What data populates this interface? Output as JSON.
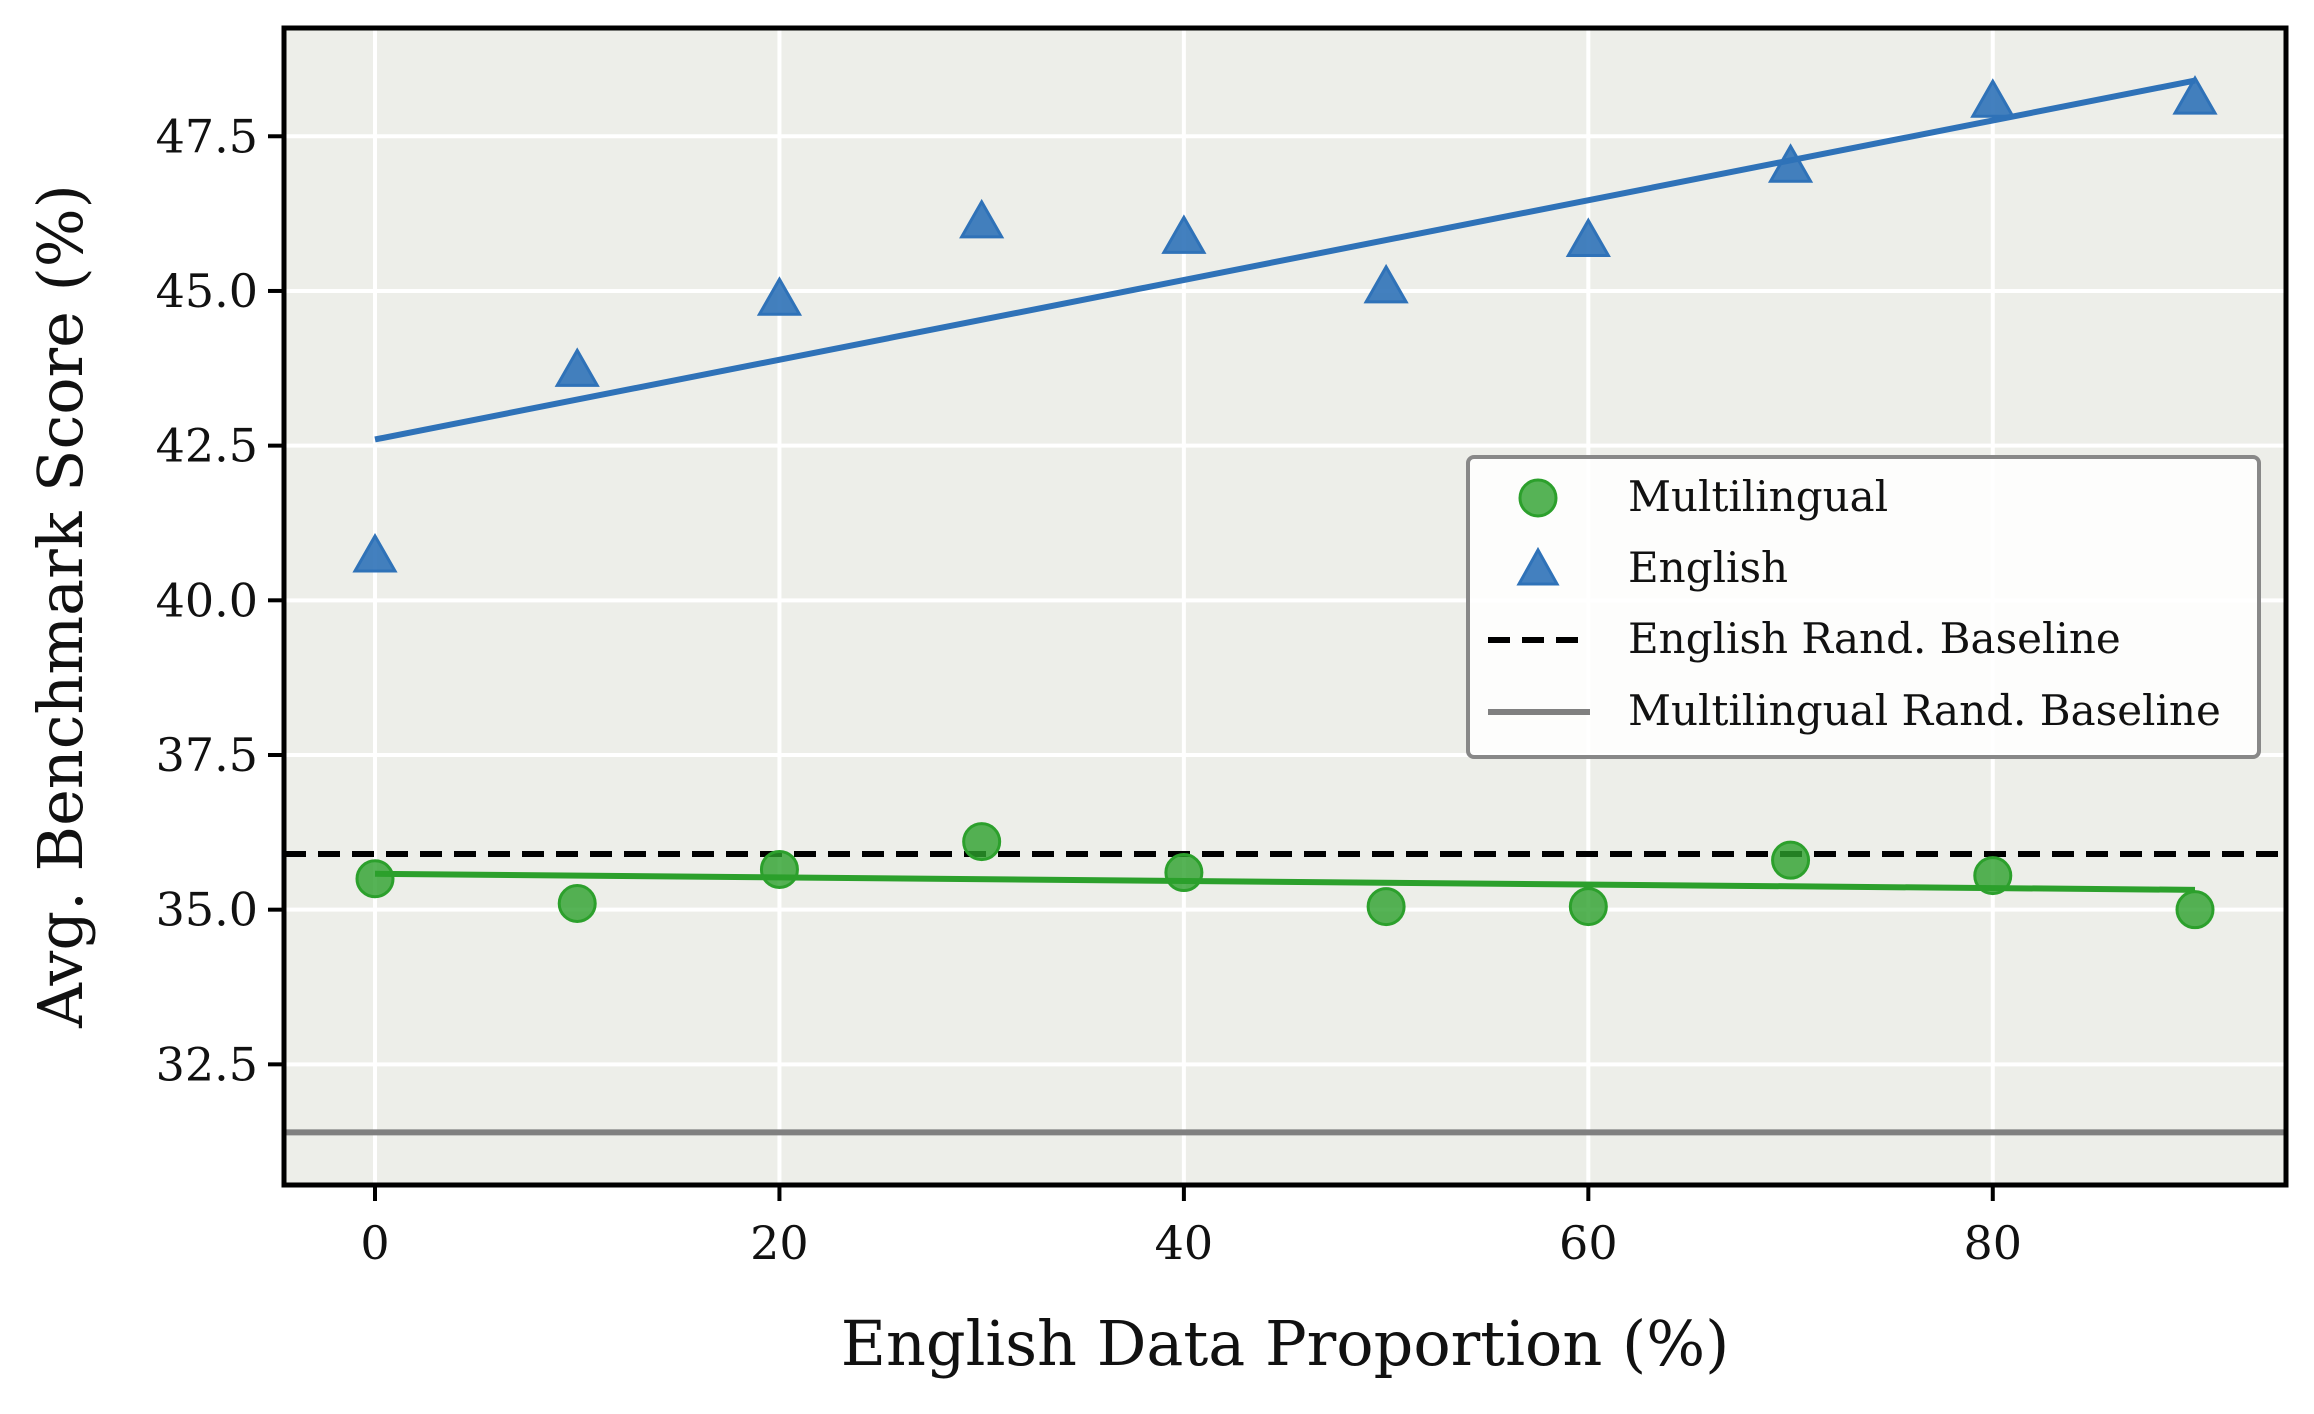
{
  "chart_data": {
    "type": "scatter",
    "xlabel": "English Data Proportion (%)",
    "ylabel": "Avg. Benchmark Score (%)",
    "xlim": [
      -4.5,
      94.5
    ],
    "ylim": [
      30.55,
      49.25
    ],
    "xticks": [
      0,
      20,
      40,
      60,
      80
    ],
    "xtick_labels": [
      "0",
      "20",
      "40",
      "60",
      "80"
    ],
    "yticks": [
      32.5,
      35.0,
      37.5,
      40.0,
      42.5,
      45.0,
      47.5
    ],
    "ytick_labels": [
      "32.5",
      "35.0",
      "37.5",
      "40.0",
      "42.5",
      "45.0",
      "47.5"
    ],
    "grid": true,
    "legend_position": "center-right",
    "x": [
      0,
      10,
      20,
      30,
      40,
      50,
      60,
      70,
      80,
      90
    ],
    "series": [
      {
        "name": "Multilingual",
        "marker": "circle",
        "color": "#2ca02c",
        "values": [
          35.5,
          35.1,
          35.65,
          36.1,
          35.6,
          35.05,
          35.05,
          35.8,
          35.55,
          35.0
        ],
        "fit_line": {
          "x": [
            0,
            90
          ],
          "y": [
            35.58,
            35.32
          ]
        }
      },
      {
        "name": "English",
        "marker": "triangle",
        "color": "#2f72b8",
        "values": [
          40.7,
          43.7,
          44.85,
          46.1,
          45.85,
          45.05,
          45.8,
          47.0,
          48.05,
          48.1
        ],
        "fit_line": {
          "x": [
            0,
            90
          ],
          "y": [
            42.6,
            48.4
          ]
        }
      }
    ],
    "baselines": [
      {
        "name": "English Rand. Baseline",
        "y": 35.9,
        "style": "dashed",
        "color": "#000000"
      },
      {
        "name": "Multilingual Rand. Baseline",
        "y": 31.4,
        "style": "solid",
        "color": "#808080"
      }
    ]
  }
}
